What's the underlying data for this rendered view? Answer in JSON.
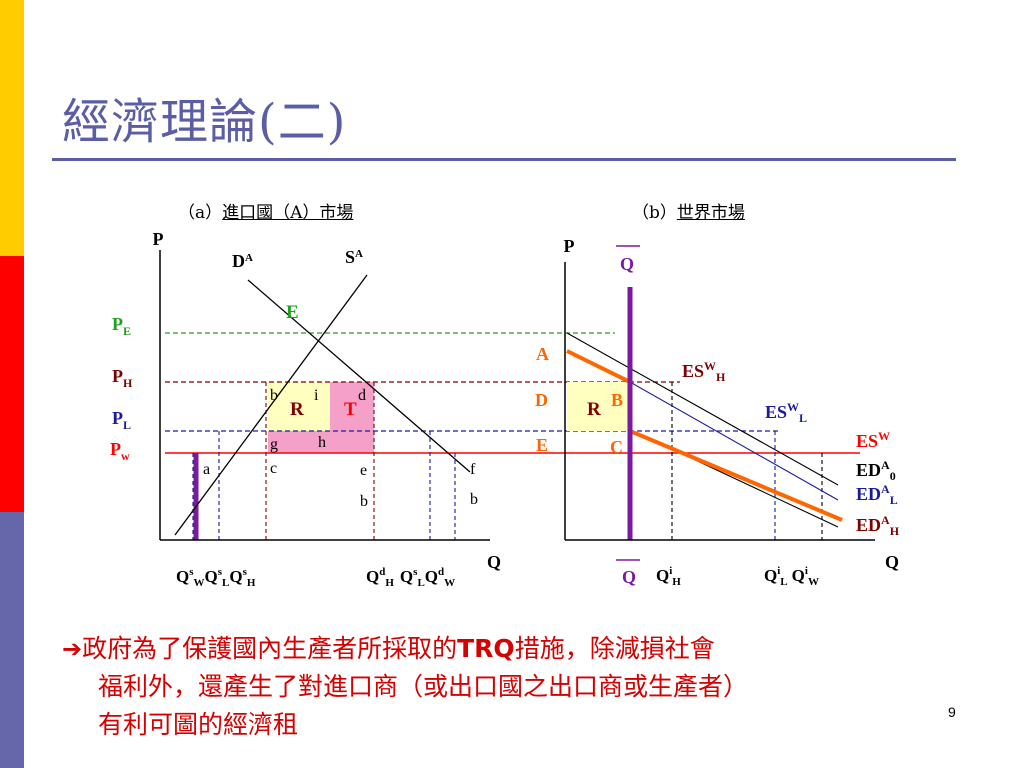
{
  "slide": {
    "title": "經濟理論(二)",
    "page_number": "9",
    "bar_colors": [
      "#ffcc00",
      "#ff0000",
      "#6666aa"
    ]
  },
  "captions": {
    "a_prefix": "（a）",
    "a_text": "進口國（A）市場",
    "b_prefix": "（b）",
    "b_text": "世界市場"
  },
  "panel_a": {
    "axis_p": "P",
    "axis_q": "Q",
    "demand_label": "D",
    "demand_sup": "A",
    "supply_label": "S",
    "supply_sup": "A",
    "equilibrium": "E",
    "price_labels": {
      "pe": "P",
      "pe_sub": "E",
      "ph": "P",
      "ph_sub": "H",
      "pl": "P",
      "pl_sub": "L",
      "pw": "P",
      "pw_sub": "w"
    },
    "region_r": "R",
    "region_t": "T",
    "points": {
      "a": "a",
      "b": "b",
      "c": "c",
      "d": "d",
      "e": "e",
      "f": "f",
      "g": "g",
      "h": "h",
      "i": "i",
      "e_b": "b",
      "f_b": "b"
    },
    "q_left": {
      "q1": "Q",
      "q1_sup": "s",
      "q1_sub": "W",
      "q2": "Q",
      "q2_sup": "s",
      "q2_sub": "L",
      "q3": "Q",
      "q3_sup": "s",
      "q3_sub": "H"
    },
    "q_right": {
      "q1": "Q",
      "q1_sup": "d",
      "q1_sub": "H",
      "q2": "Q",
      "q2_sup": "s",
      "q2_sub": "L",
      "q3": "Q",
      "q3_sup": "d",
      "q3_sub": "W"
    }
  },
  "panel_b": {
    "axis_p": "P",
    "axis_q": "Q",
    "quota_top": "Q",
    "quota_bottom": "Q",
    "price_labels": {
      "a": "A",
      "d": "D",
      "e": "E"
    },
    "region_r": "R",
    "point_b": "B",
    "point_c": "C",
    "curves": {
      "esw_h": "ES",
      "esw_h_sup": "W",
      "esw_h_sub": "H",
      "esw_l": "ES",
      "esw_l_sup": "W",
      "esw_l_sub": "L",
      "esw": "ES",
      "esw_sup": "W",
      "ed0": "ED",
      "ed0_sup": "A",
      "ed0_sub": "0",
      "edl": "ED",
      "edl_sup": "A",
      "edl_sub": "L",
      "edh": "ED",
      "edh_sup": "A",
      "edh_sub": "H"
    },
    "q_labels": {
      "qh": "Q",
      "qh_sup": "i",
      "qh_sub": "H",
      "ql": "Q",
      "ql_sup": "i",
      "ql_sub": "L",
      "qw": "Q",
      "qw_sup": "i",
      "qw_sub": "W"
    }
  },
  "note": {
    "arrow": "➔",
    "text1": "政府為了保護國內生產者所採取的",
    "trq": "TRQ",
    "text2": "措施，除減損社會",
    "line2": "福利外，還產生了對進口商（或出口國之出口商或生產者）",
    "line3": "有利可圖的經濟租"
  }
}
